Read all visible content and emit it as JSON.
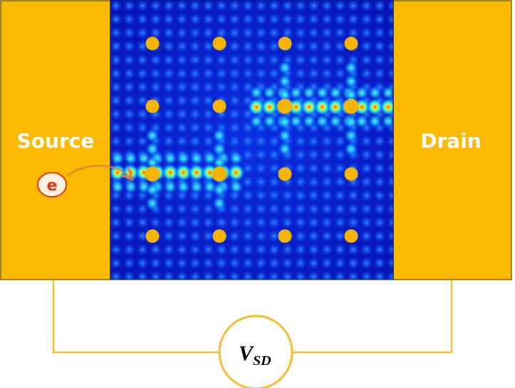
{
  "diagram": {
    "source_label": "Source",
    "drain_label": "Drain",
    "electron_label": "e",
    "voltmeter": {
      "symbol": "V",
      "subscript": "SD"
    },
    "colors": {
      "lead": "#fbb900",
      "lead_border": "#7a5a00",
      "dot": "#f7b500",
      "lattice_bg": "#0818c8",
      "wire": "#f2bd30",
      "electron_ring": "#e8341c",
      "electron_fill": "#fff3e0",
      "arrow": "#e07a3a"
    },
    "quantum_dot_lattice": {
      "rows": 4,
      "columns": 4
    }
  }
}
